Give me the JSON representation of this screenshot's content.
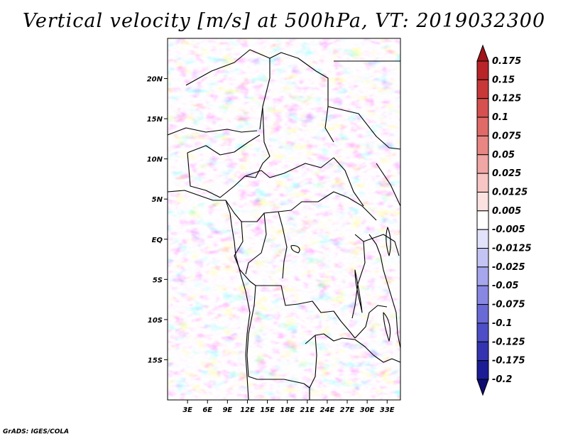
{
  "title": "Vertical velocity [m/s] at 500hPa, VT: 2019032300",
  "credit": "GrADS: IGES/COLA",
  "chart_data": {
    "type": "heatmap",
    "title": "Vertical velocity [m/s] at 500hPa, VT: 2019032300",
    "variable": "vertical velocity",
    "units": "m/s",
    "level": "500hPa",
    "valid_time": "2019032300",
    "xlim": [
      0,
      35
    ],
    "ylim": [
      -20,
      25
    ],
    "x_ticks": [
      {
        "value": 3,
        "label": "3E"
      },
      {
        "value": 6,
        "label": "6E"
      },
      {
        "value": 9,
        "label": "9E"
      },
      {
        "value": 12,
        "label": "12E"
      },
      {
        "value": 15,
        "label": "15E"
      },
      {
        "value": 18,
        "label": "18E"
      },
      {
        "value": 21,
        "label": "21E"
      },
      {
        "value": 24,
        "label": "24E"
      },
      {
        "value": 27,
        "label": "27E"
      },
      {
        "value": 30,
        "label": "30E"
      },
      {
        "value": 33,
        "label": "33E"
      }
    ],
    "y_ticks": [
      {
        "value": 20,
        "label": "20N"
      },
      {
        "value": 15,
        "label": "15N"
      },
      {
        "value": 10,
        "label": "10N"
      },
      {
        "value": 5,
        "label": "5N"
      },
      {
        "value": 0,
        "label": "EQ"
      },
      {
        "value": -5,
        "label": "5S"
      },
      {
        "value": -10,
        "label": "10S"
      },
      {
        "value": -15,
        "label": "15S"
      }
    ],
    "colorbar": {
      "labels": [
        "0.175",
        "0.15",
        "0.125",
        "0.1",
        "0.075",
        "0.05",
        "0.025",
        "0.0125",
        "0.005",
        "-0.005",
        "-0.0125",
        "-0.025",
        "-0.05",
        "-0.075",
        "-0.1",
        "-0.125",
        "-0.175",
        "-0.2"
      ],
      "colors": [
        "#a0141a",
        "#b82428",
        "#c83838",
        "#d65050",
        "#e06a68",
        "#e88684",
        "#f0a6a4",
        "#f7c6c4",
        "#fbe2e0",
        "#ffffff",
        "#e2e2fb",
        "#c4c4f4",
        "#a6a6ec",
        "#8888e2",
        "#6a6ad6",
        "#4e4ec6",
        "#3434b0",
        "#1c1c96",
        "#0c0c70"
      ]
    }
  }
}
